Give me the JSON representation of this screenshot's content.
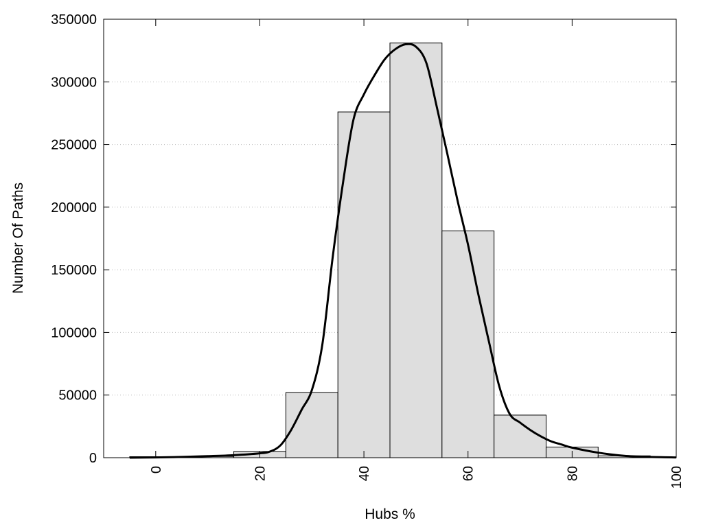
{
  "chart_data": {
    "type": "bar",
    "xlabel": "Hubs %",
    "ylabel": "Number Of Paths",
    "xlim": [
      -10,
      100
    ],
    "ylim": [
      0,
      350000
    ],
    "grid": "horizontal dotted",
    "x_ticks": [
      0,
      20,
      40,
      60,
      80,
      100
    ],
    "y_ticks": [
      0,
      50000,
      100000,
      150000,
      200000,
      250000,
      300000,
      350000
    ],
    "x_tick_labels": [
      "0",
      "20",
      "40",
      "60",
      "80",
      "100"
    ],
    "y_tick_labels": [
      "0",
      "50000",
      "100000",
      "150000",
      "200000",
      "250000",
      "300000",
      "350000"
    ],
    "bars": {
      "bin_width": 10,
      "centers": [
        0,
        10,
        20,
        30,
        40,
        50,
        60,
        70,
        80,
        90
      ],
      "values": [
        800,
        1000,
        5000,
        52000,
        276000,
        331000,
        181000,
        34000,
        8500,
        1500
      ],
      "fill": "#dedede",
      "stroke": "#000000"
    },
    "curve": {
      "type": "line",
      "color": "#000000",
      "x": [
        -5,
        0,
        5,
        10,
        15,
        20,
        22,
        24,
        26,
        28,
        30,
        32,
        34,
        36,
        38,
        40,
        42,
        44,
        46,
        48,
        50,
        52,
        54,
        56,
        58,
        60,
        62,
        64,
        66,
        68,
        70,
        72,
        74,
        76,
        78,
        80,
        85,
        90,
        95,
        100
      ],
      "y": [
        0,
        200,
        600,
        1200,
        2000,
        3500,
        5000,
        10000,
        22000,
        38000,
        54000,
        90000,
        160000,
        220000,
        270000,
        290000,
        305000,
        318000,
        326000,
        330000,
        328000,
        315000,
        280000,
        243000,
        205000,
        170000,
        130000,
        93000,
        57000,
        35000,
        28000,
        22000,
        17000,
        13000,
        10500,
        8000,
        4000,
        1500,
        600,
        200
      ]
    }
  }
}
